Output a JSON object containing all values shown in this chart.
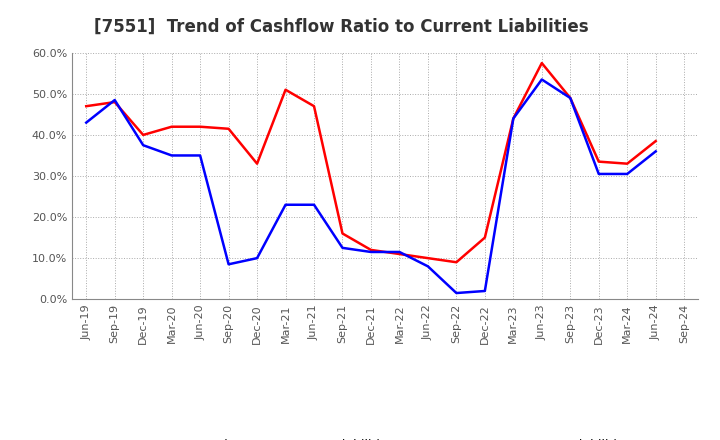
{
  "title": "[7551]  Trend of Cashflow Ratio to Current Liabilities",
  "x_labels": [
    "Jun-19",
    "Sep-19",
    "Dec-19",
    "Mar-20",
    "Jun-20",
    "Sep-20",
    "Dec-20",
    "Mar-21",
    "Jun-21",
    "Sep-21",
    "Dec-21",
    "Mar-22",
    "Jun-22",
    "Sep-22",
    "Dec-22",
    "Mar-23",
    "Jun-23",
    "Sep-23",
    "Dec-23",
    "Mar-24",
    "Jun-24",
    "Sep-24"
  ],
  "operating_cf": [
    0.47,
    0.48,
    0.4,
    0.42,
    0.42,
    0.415,
    0.33,
    0.51,
    0.47,
    0.16,
    0.12,
    0.11,
    0.1,
    0.09,
    0.15,
    0.44,
    0.575,
    0.49,
    0.335,
    0.33,
    0.385,
    null
  ],
  "free_cf": [
    0.43,
    0.485,
    0.375,
    0.35,
    0.35,
    0.085,
    0.1,
    0.23,
    0.23,
    0.125,
    0.115,
    0.115,
    0.08,
    0.015,
    0.02,
    0.44,
    0.535,
    0.49,
    0.305,
    0.305,
    0.36,
    null
  ],
  "ylim": [
    0.0,
    0.6
  ],
  "yticks": [
    0.0,
    0.1,
    0.2,
    0.3,
    0.4,
    0.5,
    0.6
  ],
  "operating_color": "#FF0000",
  "free_color": "#0000FF",
  "line_width": 1.8,
  "legend_operating": "Operating CF to Current Liabilities",
  "legend_free": "Free CF to Current Liabilities",
  "background_color": "#FFFFFF",
  "plot_bg_color": "#FFFFFF",
  "grid_color": "#AAAAAA",
  "title_fontsize": 12,
  "label_fontsize": 8,
  "tick_color": "#555555"
}
